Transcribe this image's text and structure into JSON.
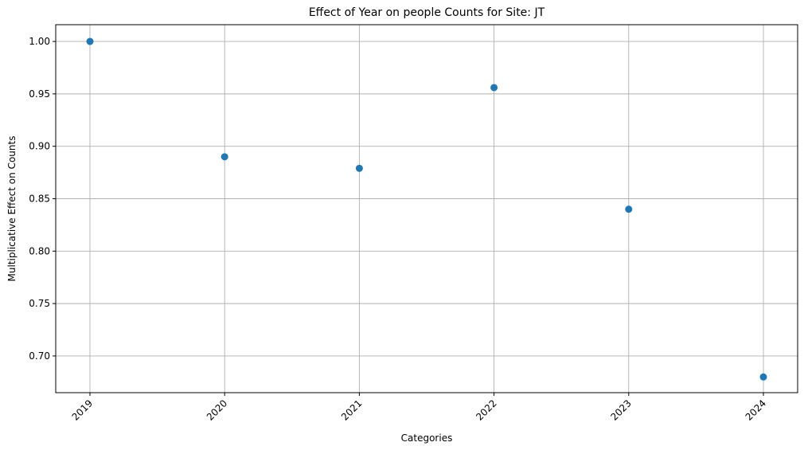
{
  "chart_data": {
    "type": "scatter",
    "title": "Effect of Year on people Counts for Site: JT",
    "xlabel": "Categories",
    "ylabel": "Multiplicative Effect on Counts",
    "categories": [
      "2019",
      "2020",
      "2021",
      "2022",
      "2023",
      "2024"
    ],
    "values": [
      1.0,
      0.89,
      0.879,
      0.956,
      0.84,
      0.68
    ],
    "ylim": [
      0.665,
      1.016
    ],
    "yticks": [
      "0.70",
      "0.75",
      "0.80",
      "0.85",
      "0.90",
      "0.95",
      "1.00"
    ],
    "grid": true,
    "marker_color": "#1f77b4",
    "xtick_rotation_deg": 45
  }
}
